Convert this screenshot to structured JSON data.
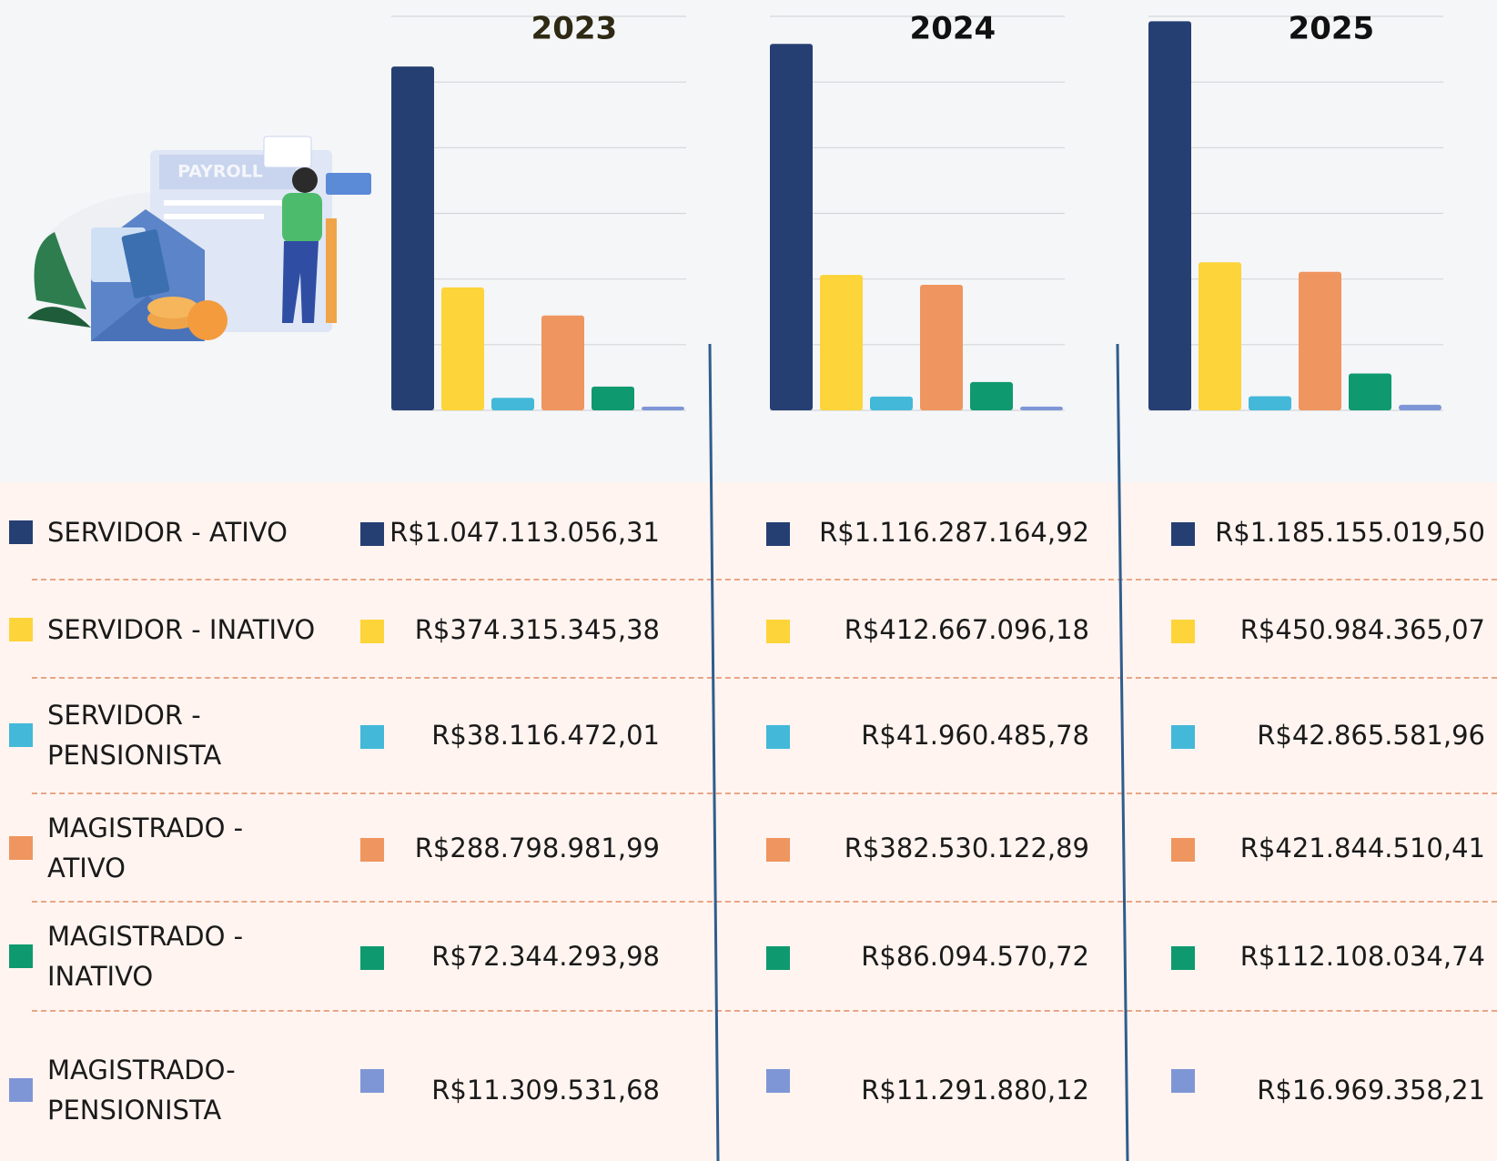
{
  "illustration_text": "PAYROLL",
  "chart_data": {
    "type": "bar",
    "categories": [
      "SERVIDOR - ATIVO",
      "SERVIDOR - INATIVO",
      "SERVIDOR - PENSIONISTA",
      "MAGISTRADO - ATIVO",
      "MAGISTRADO - INATIVO",
      "MAGISTRADO- PENSIONISTA"
    ],
    "colors": [
      "#263f73",
      "#fdd43a",
      "#43b8d8",
      "#ef955f",
      "#0e9a6e",
      "#7f96d6"
    ],
    "ylim": [
      0,
      1200000000
    ],
    "yticks": [
      0,
      200000000,
      400000000,
      600000000,
      800000000,
      1000000000,
      1200000000
    ],
    "grid": true,
    "series": [
      {
        "name": "2023",
        "values": [
          1047113056.31,
          374315345.38,
          38116472.01,
          288798981.99,
          72344293.98,
          11309531.68
        ],
        "value_labels": [
          "R$1.047.113.056,31",
          "R$374.315.345,38",
          "R$38.116.472,01",
          "R$288.798.981,99",
          "R$72.344.293,98",
          "R$11.309.531,68"
        ]
      },
      {
        "name": "2024",
        "values": [
          1116287164.92,
          412667096.18,
          41960485.78,
          382530122.89,
          86094570.72,
          11291880.12
        ],
        "value_labels": [
          "R$1.116.287.164,92",
          "R$412.667.096,18",
          "R$41.960.485,78",
          "R$382.530.122,89",
          "R$86.094.570,72",
          "R$11.291.880,12"
        ]
      },
      {
        "name": "2025",
        "values": [
          1185155019.5,
          450984365.07,
          42865581.96,
          421844510.41,
          112108034.74,
          16969358.21
        ],
        "value_labels": [
          "R$1.185.155.019,50",
          "R$450.984.365,07",
          "R$42.865.581,96",
          "R$421.844.510,41",
          "R$112.108.034,74",
          "R$16.969.358,21"
        ]
      }
    ]
  }
}
